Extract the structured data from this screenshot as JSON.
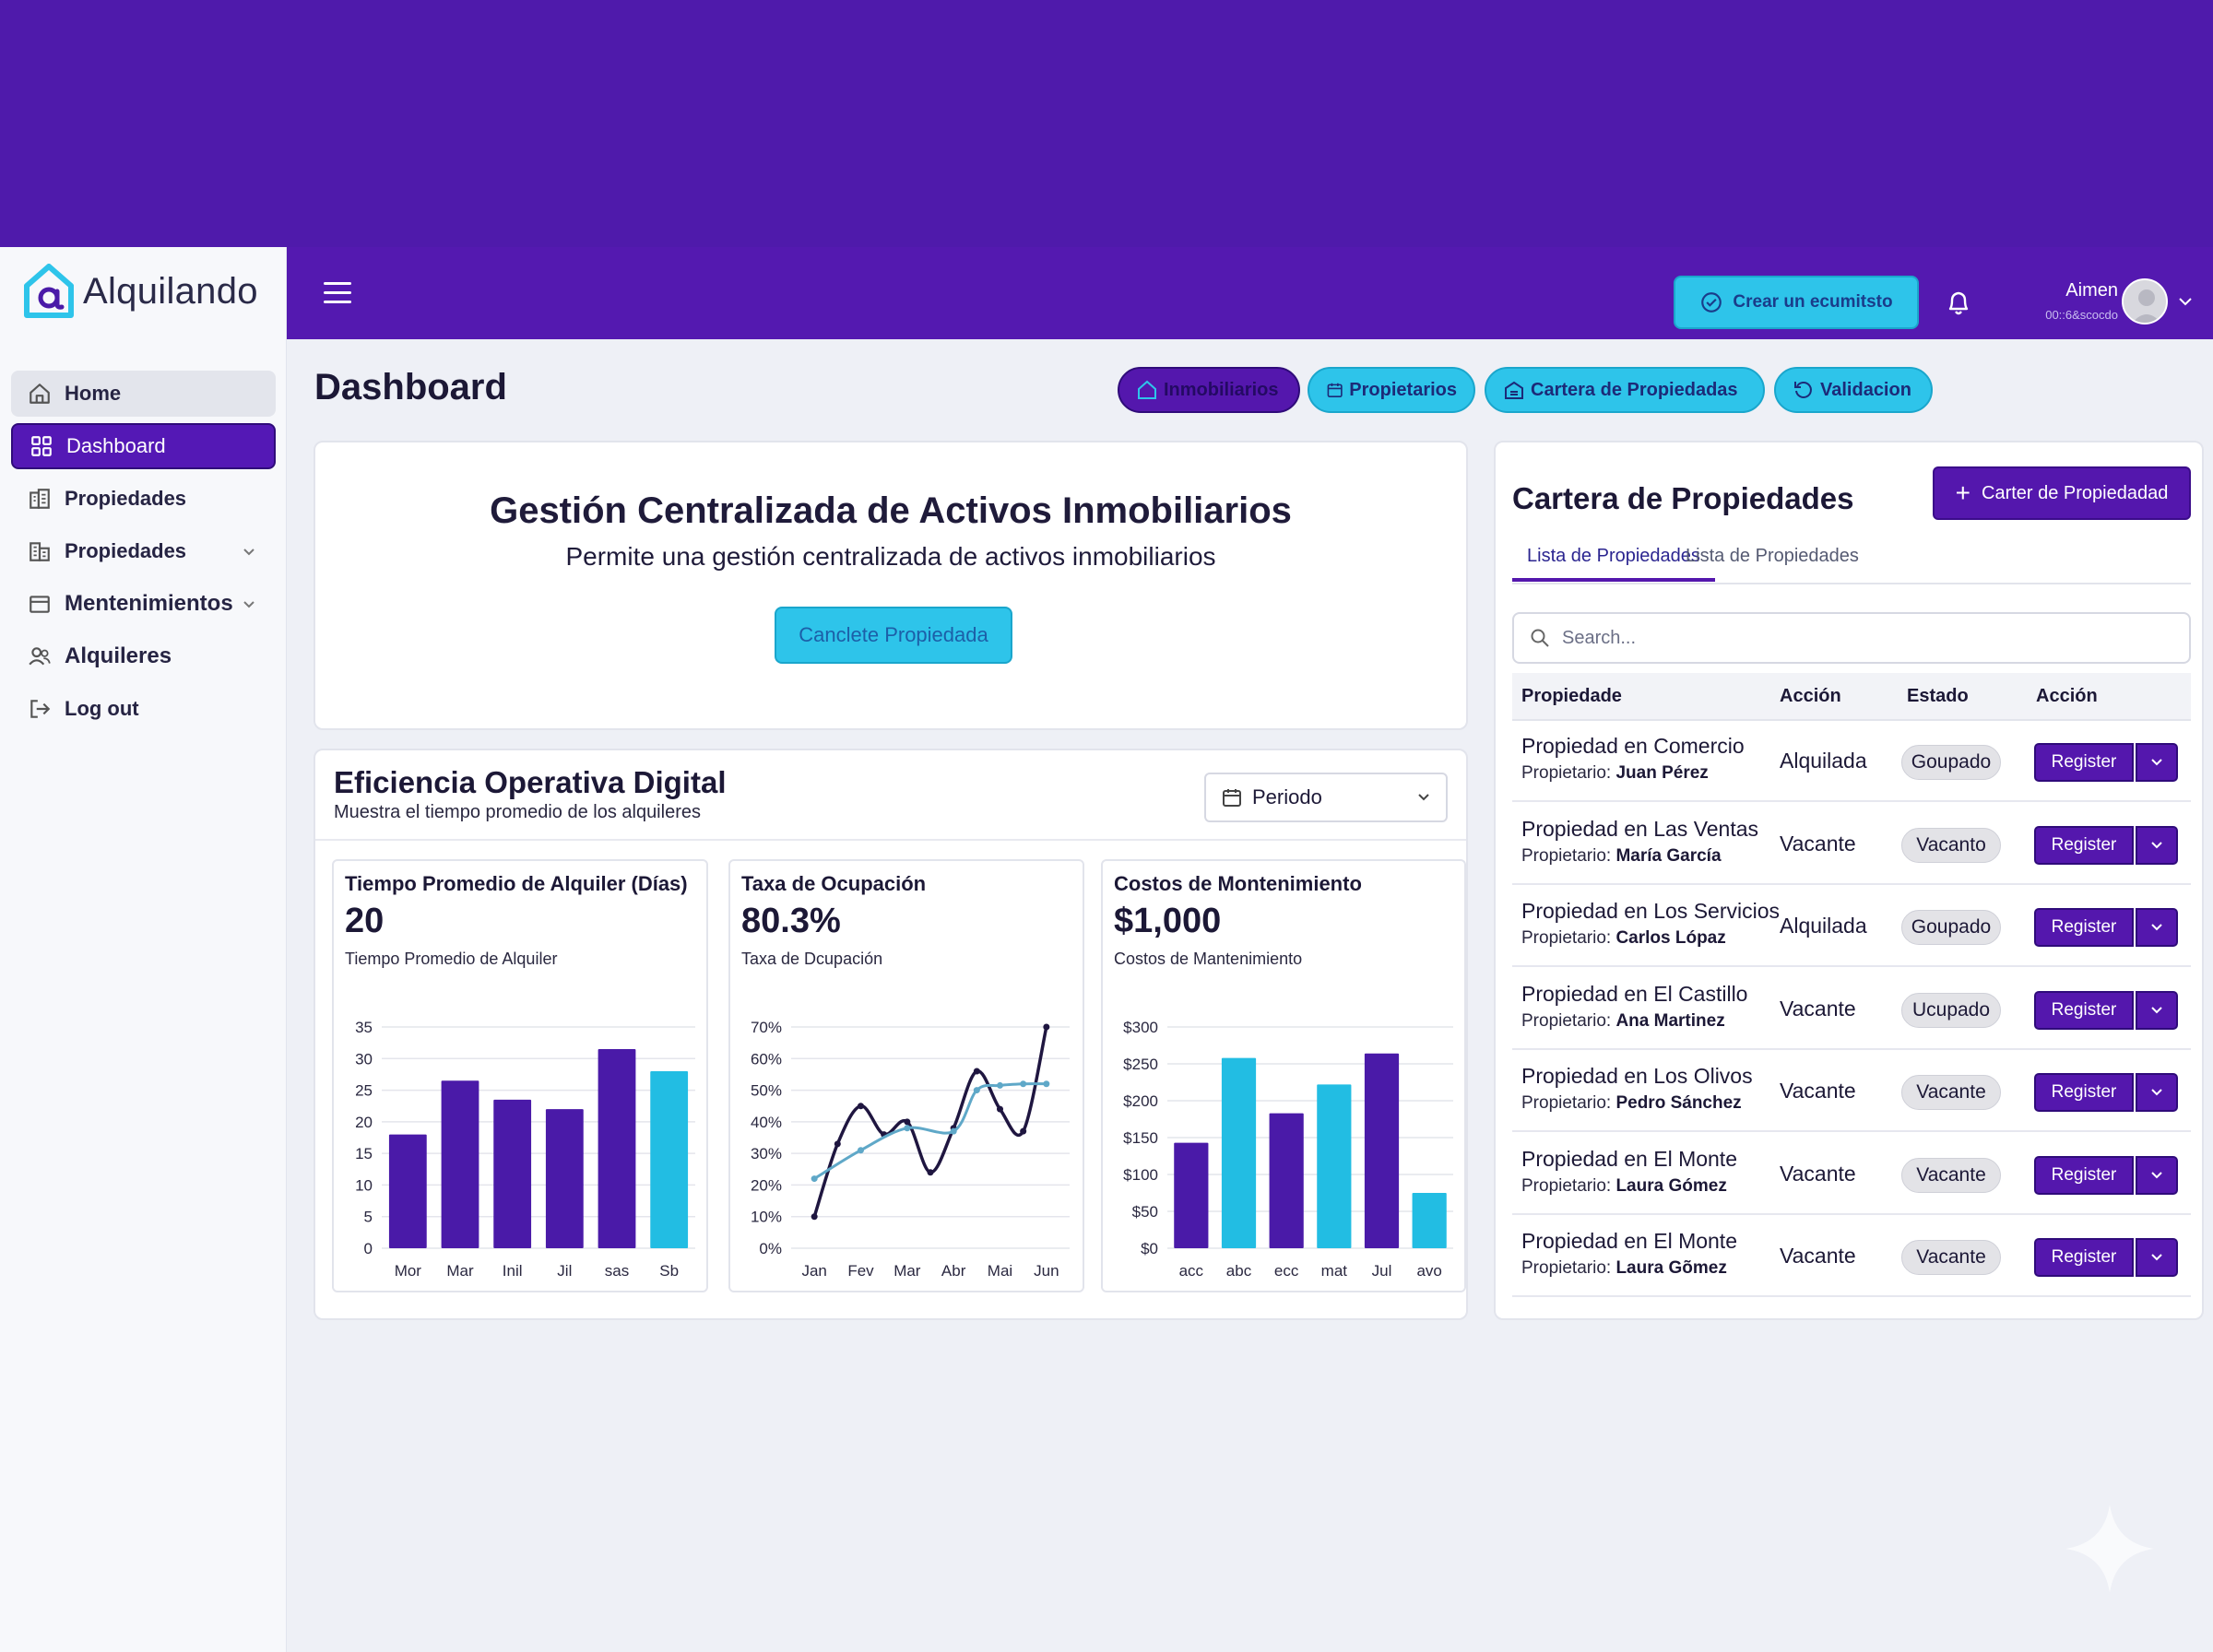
{
  "app": {
    "name": "Alquilando"
  },
  "colors": {
    "primary": "#5417ad",
    "accent": "#2ec4ea",
    "band": "#4f1aab"
  },
  "sidebar": {
    "items": [
      {
        "label": "Home",
        "icon": "home-icon"
      },
      {
        "label": "Dashboard",
        "icon": "grid-icon"
      },
      {
        "label": "Propiedades",
        "icon": "buildings-icon"
      },
      {
        "label": "Propiedades",
        "icon": "building-icon"
      },
      {
        "label": "Mentenimientos",
        "icon": "card-icon"
      },
      {
        "label": "Alquileres",
        "icon": "users-icon"
      },
      {
        "label": "Log out",
        "icon": "logout-icon"
      }
    ]
  },
  "header": {
    "cta_label": "Crear un ecumitsto",
    "user_name": "Aimen",
    "user_sub": "00::6&scocdo"
  },
  "page": {
    "title": "Dashboard",
    "pills": [
      "Inmobiliarios",
      "Propietarios",
      "Cartera de Propiedadas",
      "Validacion"
    ]
  },
  "hero": {
    "title": "Gestión Centralizada de Activos Inmobiliarios",
    "subtitle": "Permite una gestión centralizada de activos inmobiliarios",
    "button": "Canclete Propiedada"
  },
  "efficiency": {
    "title": "Eficiencia Operativa Digital",
    "subtitle": "Muestra el tiempo promedio de los alquileres",
    "period_label": "Periodo"
  },
  "chart_data": [
    {
      "type": "bar",
      "title": "Tiempo Promedio de Alquiler (Días)",
      "kpi": "20",
      "subtitle": "Tiempo Promedio de Alquiler",
      "categories": [
        "Mor",
        "Mar",
        "Inil",
        "Jil",
        "sas",
        "Sb"
      ],
      "values": [
        18,
        26.5,
        23.5,
        22,
        31.5,
        28
      ],
      "bar_colors": [
        "#4a1aa8",
        "#4a1aa8",
        "#4a1aa8",
        "#4a1aa8",
        "#4a1aa8",
        "#22bde3"
      ],
      "ylim": [
        0,
        35
      ],
      "yticks": [
        0,
        5,
        10,
        15,
        20,
        25,
        30,
        35
      ],
      "ytick_labels": [
        "0",
        "5",
        "10",
        "15",
        "20",
        "25",
        "30",
        "35"
      ],
      "grid": true
    },
    {
      "type": "line",
      "title": "Taxa de Ocupación",
      "kpi": "80.3%",
      "subtitle": "Taxa de Dcupación",
      "categories": [
        "Jan",
        "Fev",
        "Mar",
        "Abr",
        "Mai",
        "Jun"
      ],
      "ylim": [
        0,
        70
      ],
      "yticks": [
        0,
        10,
        20,
        30,
        40,
        50,
        60,
        70
      ],
      "ytick_labels": [
        "0%",
        "10%",
        "20%",
        "30%",
        "40%",
        "50%",
        "60%",
        "70%"
      ],
      "series": [
        {
          "color": "#1f1640",
          "points": [
            [
              0,
              10
            ],
            [
              0.5,
              33
            ],
            [
              1,
              45
            ],
            [
              1.5,
              36
            ],
            [
              2,
              40
            ],
            [
              2.5,
              24
            ],
            [
              3,
              38
            ],
            [
              3.5,
              56
            ],
            [
              4,
              44
            ],
            [
              4.5,
              37
            ],
            [
              5,
              70
            ]
          ]
        },
        {
          "color": "#5fa8c8",
          "points": [
            [
              0,
              22
            ],
            [
              1,
              31
            ],
            [
              2,
              38
            ],
            [
              3,
              37
            ],
            [
              3.5,
              50
            ],
            [
              4,
              51.5
            ],
            [
              4.5,
              52
            ],
            [
              5,
              52
            ]
          ]
        }
      ],
      "grid": true
    },
    {
      "type": "bar",
      "title": "Costos de Montenimiento",
      "kpi": "$1,000",
      "subtitle": "Costos de Mantenimiento",
      "categories": [
        "acc",
        "abc",
        "ecc",
        "mat",
        "Jul",
        "avo"
      ],
      "values": [
        143,
        258,
        183,
        222,
        264,
        75
      ],
      "bar_colors": [
        "#4a1aa8",
        "#22bde3",
        "#4a1aa8",
        "#22bde3",
        "#4a1aa8",
        "#22bde3"
      ],
      "ylim": [
        0,
        300
      ],
      "yticks": [
        0,
        50,
        100,
        150,
        200,
        250,
        300
      ],
      "ytick_labels": [
        "$0",
        "$50",
        "$100",
        "$150",
        "$200",
        "$250",
        "$300"
      ],
      "grid": true
    }
  ],
  "portfolio": {
    "title": "Cartera de Propiedades",
    "add_button": "Carter de Propiedadad",
    "tabs": [
      "Lista de Propiedades",
      "Lista de Propiedades"
    ],
    "search_placeholder": "Search...",
    "columns": [
      "Propiedade",
      "Acción",
      "Estado",
      "Acción"
    ],
    "owner_prefix": "Propietario:",
    "button_label": "Register",
    "rows": [
      {
        "name": "Propiedad en Comercio",
        "owner": "Juan Pérez",
        "action": "Alquilada",
        "status": "Goupado"
      },
      {
        "name": "Propiedad en Las Ventas",
        "owner": "María García",
        "action": "Vacante",
        "status": "Vacanto"
      },
      {
        "name": "Propiedad en Los Servicios",
        "owner": "Carlos Lópaz",
        "action": "Alquilada",
        "status": "Goupado"
      },
      {
        "name": "Propiedad en El Castillo",
        "owner": "Ana Martinez",
        "action": "Vacante",
        "status": "Ucupado"
      },
      {
        "name": "Propiedad en Los Olivos",
        "owner": "Pedro Sánchez",
        "action": "Vacante",
        "status": "Vacante"
      },
      {
        "name": "Propiedad en El Monte",
        "owner": "Laura Gómez",
        "action": "Vacante",
        "status": "Vacante"
      },
      {
        "name": "Propiedad en El Monte",
        "owner": "Laura Gõmez",
        "action": "Vacante",
        "status": "Vacante"
      }
    ]
  }
}
